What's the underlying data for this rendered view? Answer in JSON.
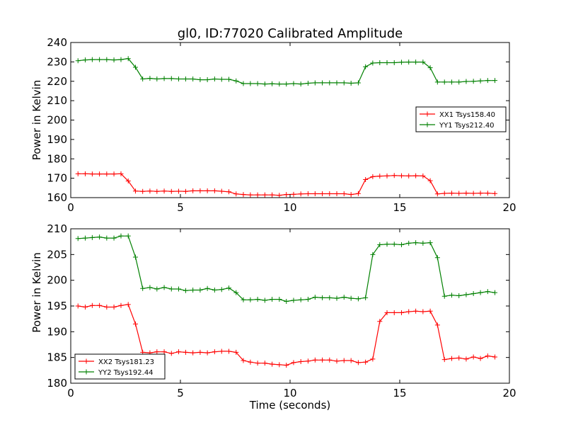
{
  "page": {
    "title": "gl0, ID:77020 Calibrated Amplitude"
  },
  "chart_data": [
    {
      "type": "line",
      "title": "gl0, ID:77020 Calibrated Amplitude",
      "xlabel": "",
      "ylabel": "Power in Kelvin",
      "xlim": [
        0,
        20
      ],
      "ylim": [
        160,
        240
      ],
      "xticks": [
        0,
        5,
        10,
        15,
        20
      ],
      "yticks": [
        160,
        170,
        180,
        190,
        200,
        210,
        220,
        230,
        240
      ],
      "grid": false,
      "legend_position": "right",
      "marker": "+",
      "x": [
        0.33,
        0.66,
        0.98,
        1.31,
        1.64,
        1.97,
        2.29,
        2.62,
        2.95,
        3.28,
        3.61,
        3.93,
        4.26,
        4.59,
        4.92,
        5.24,
        5.57,
        5.9,
        6.23,
        6.56,
        6.88,
        7.21,
        7.54,
        7.87,
        8.19,
        8.52,
        8.85,
        9.18,
        9.51,
        9.83,
        10.16,
        10.49,
        10.82,
        11.14,
        11.47,
        11.8,
        12.13,
        12.46,
        12.78,
        13.11,
        13.44,
        13.77,
        14.09,
        14.42,
        14.75,
        15.08,
        15.41,
        15.73,
        16.06,
        16.39,
        16.72,
        17.04,
        17.37,
        17.7,
        18.03,
        18.36,
        18.68,
        19.01,
        19.34
      ],
      "series": [
        {
          "name": "XX1 Tsys158.40",
          "color": "#ff0000",
          "values": [
            172.3,
            172.3,
            172.2,
            172.2,
            172.2,
            172.2,
            172.3,
            168.6,
            163.4,
            163.2,
            163.4,
            163.2,
            163.4,
            163.2,
            163.3,
            163.2,
            163.5,
            163.5,
            163.5,
            163.5,
            163.3,
            163.0,
            161.9,
            161.6,
            161.4,
            161.4,
            161.4,
            161.4,
            161.2,
            161.6,
            161.7,
            161.9,
            162.0,
            162.0,
            162.0,
            162.0,
            162.0,
            162.0,
            161.6,
            162.1,
            169.3,
            170.8,
            171.1,
            171.2,
            171.4,
            171.3,
            171.2,
            171.3,
            171.2,
            168.7,
            161.9,
            162.2,
            162.3,
            162.2,
            162.3,
            162.2,
            162.3,
            162.3,
            162.1
          ]
        },
        {
          "name": "YY1 Tsys212.40",
          "color": "#008000",
          "values": [
            230.6,
            231.0,
            231.2,
            231.2,
            231.2,
            231.0,
            231.2,
            231.7,
            227.2,
            221.2,
            221.5,
            221.2,
            221.4,
            221.4,
            221.2,
            221.2,
            221.2,
            220.8,
            220.8,
            221.2,
            221.0,
            221.0,
            220.2,
            218.8,
            218.8,
            218.8,
            218.6,
            218.7,
            218.6,
            218.6,
            218.8,
            218.6,
            219.0,
            219.2,
            219.2,
            219.2,
            219.2,
            219.2,
            219.0,
            219.2,
            227.5,
            229.4,
            229.6,
            229.6,
            229.6,
            229.8,
            229.9,
            229.9,
            229.9,
            227.0,
            219.6,
            219.6,
            219.6,
            219.6,
            219.9,
            220.0,
            220.2,
            220.4,
            220.4
          ]
        }
      ]
    },
    {
      "type": "line",
      "title": "",
      "xlabel": "Time (seconds)",
      "ylabel": "Power in Kelvin",
      "xlim": [
        0,
        20
      ],
      "ylim": [
        180,
        210
      ],
      "xticks": [
        0,
        5,
        10,
        15,
        20
      ],
      "yticks": [
        180,
        185,
        190,
        195,
        200,
        205,
        210
      ],
      "grid": false,
      "legend_position": "bottom-left",
      "marker": "+",
      "x": [
        0.33,
        0.66,
        0.98,
        1.31,
        1.64,
        1.97,
        2.29,
        2.62,
        2.95,
        3.28,
        3.61,
        3.93,
        4.26,
        4.59,
        4.92,
        5.24,
        5.57,
        5.9,
        6.23,
        6.56,
        6.88,
        7.21,
        7.54,
        7.87,
        8.19,
        8.52,
        8.85,
        9.18,
        9.51,
        9.83,
        10.16,
        10.49,
        10.82,
        11.14,
        11.47,
        11.8,
        12.13,
        12.46,
        12.78,
        13.11,
        13.44,
        13.77,
        14.09,
        14.42,
        14.75,
        15.08,
        15.41,
        15.73,
        16.06,
        16.39,
        16.72,
        17.04,
        17.37,
        17.7,
        18.03,
        18.36,
        18.68,
        19.01,
        19.34
      ],
      "series": [
        {
          "name": "XX2 Tsys181.23",
          "color": "#ff0000",
          "values": [
            195.0,
            194.8,
            195.1,
            195.1,
            194.8,
            194.8,
            195.1,
            195.3,
            191.5,
            186.0,
            185.9,
            186.1,
            186.1,
            185.8,
            186.1,
            186.0,
            185.9,
            186.0,
            185.9,
            186.1,
            186.2,
            186.2,
            186.0,
            184.4,
            184.1,
            183.9,
            183.9,
            183.7,
            183.6,
            183.5,
            184.0,
            184.2,
            184.3,
            184.5,
            184.5,
            184.5,
            184.3,
            184.4,
            184.4,
            184.0,
            184.1,
            184.7,
            192.0,
            193.7,
            193.7,
            193.7,
            193.9,
            194.0,
            193.9,
            194.0,
            191.3,
            184.6,
            184.8,
            184.9,
            184.7,
            185.1,
            184.8,
            185.3,
            185.1
          ]
        },
        {
          "name": "YY2 Tsys192.44",
          "color": "#008000",
          "values": [
            208.1,
            208.2,
            208.3,
            208.4,
            208.2,
            208.2,
            208.6,
            208.6,
            204.5,
            198.4,
            198.6,
            198.3,
            198.6,
            198.3,
            198.3,
            198.0,
            198.1,
            198.1,
            198.4,
            198.1,
            198.2,
            198.5,
            197.6,
            196.2,
            196.2,
            196.3,
            196.1,
            196.3,
            196.3,
            195.9,
            196.1,
            196.2,
            196.3,
            196.7,
            196.6,
            196.6,
            196.5,
            196.7,
            196.5,
            196.4,
            196.6,
            205.0,
            206.9,
            207.0,
            207.0,
            206.9,
            207.2,
            207.3,
            207.2,
            207.3,
            204.4,
            196.9,
            197.1,
            197.0,
            197.2,
            197.4,
            197.6,
            197.8,
            197.6
          ]
        }
      ]
    }
  ]
}
